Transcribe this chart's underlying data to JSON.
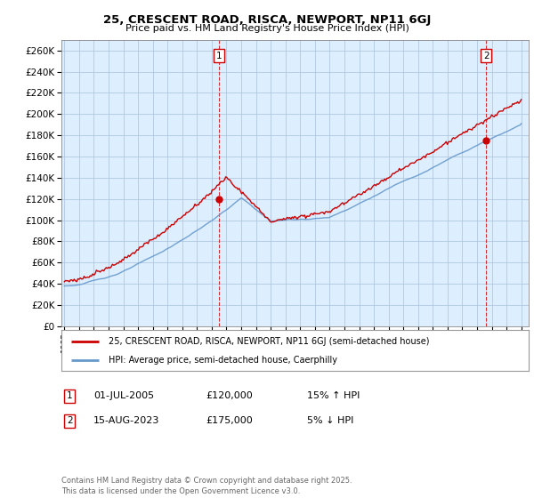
{
  "title": "25, CRESCENT ROAD, RISCA, NEWPORT, NP11 6GJ",
  "subtitle": "Price paid vs. HM Land Registry's House Price Index (HPI)",
  "background_color": "#ffffff",
  "plot_background": "#ddeeff",
  "grid_color": "#b0c8e0",
  "line1_color": "#cc0000",
  "line2_color": "#6699cc",
  "legend1": "25, CRESCENT ROAD, RISCA, NEWPORT, NP11 6GJ (semi-detached house)",
  "legend2": "HPI: Average price, semi-detached house, Caerphilly",
  "note1_date": "01-JUL-2005",
  "note1_price": "£120,000",
  "note1_hpi": "15% ↑ HPI",
  "note2_date": "15-AUG-2023",
  "note2_price": "£175,000",
  "note2_hpi": "5% ↓ HPI",
  "footer": "Contains HM Land Registry data © Crown copyright and database right 2025.\nThis data is licensed under the Open Government Licence v3.0.",
  "ylim_max": 270000,
  "ylim_min": 0,
  "yticks": [
    0,
    20000,
    40000,
    60000,
    80000,
    100000,
    120000,
    140000,
    160000,
    180000,
    200000,
    220000,
    240000,
    260000
  ],
  "sale1_year": 2005.5,
  "sale1_price": 120000,
  "sale2_year": 2023.625,
  "sale2_price": 175000
}
